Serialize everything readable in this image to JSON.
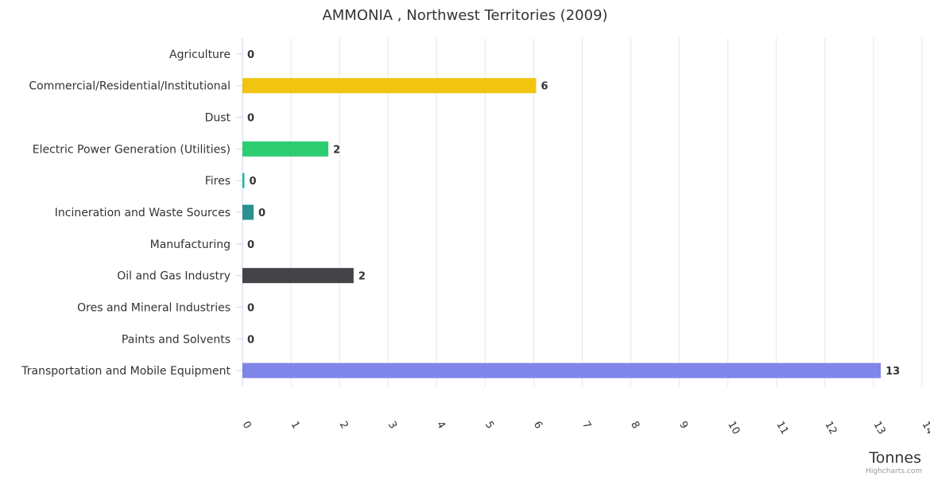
{
  "chart_data": {
    "type": "bar",
    "orientation": "horizontal",
    "title": "AMMONIA , Northwest Territories (2009)",
    "xlabel": "Tonnes",
    "ylabel": "",
    "categories": [
      "Agriculture",
      "Commercial/Residential/Institutional",
      "Dust",
      "Electric Power Generation (Utilities)",
      "Fires",
      "Incineration and Waste Sources",
      "Manufacturing",
      "Oil and Gas Industry",
      "Ores and Mineral Industries",
      "Paints and Solvents",
      "Transportation and Mobile Equipment"
    ],
    "values": [
      0,
      6.05,
      0,
      1.77,
      0.04,
      0.23,
      0,
      2.29,
      0,
      0,
      13.15
    ],
    "data_labels": [
      "0",
      "6",
      "0",
      "2",
      "0",
      "0",
      "0",
      "2",
      "0",
      "0",
      "13"
    ],
    "colors": [
      "#7cb5ec",
      "#f1c40f",
      "#2b908f",
      "#2ecc71",
      "#1abc9c",
      "#2b908f",
      "#f45b5b",
      "#434348",
      "#8e44ad",
      "#e67e22",
      "#8085e9"
    ],
    "xlim": [
      0,
      14
    ],
    "ticks": [
      "0",
      "1",
      "2",
      "3",
      "4",
      "5",
      "6",
      "7",
      "8",
      "9",
      "10",
      "11",
      "12",
      "13",
      "14"
    ],
    "grid": true,
    "legend": "none"
  },
  "credits": "Highcharts.com"
}
